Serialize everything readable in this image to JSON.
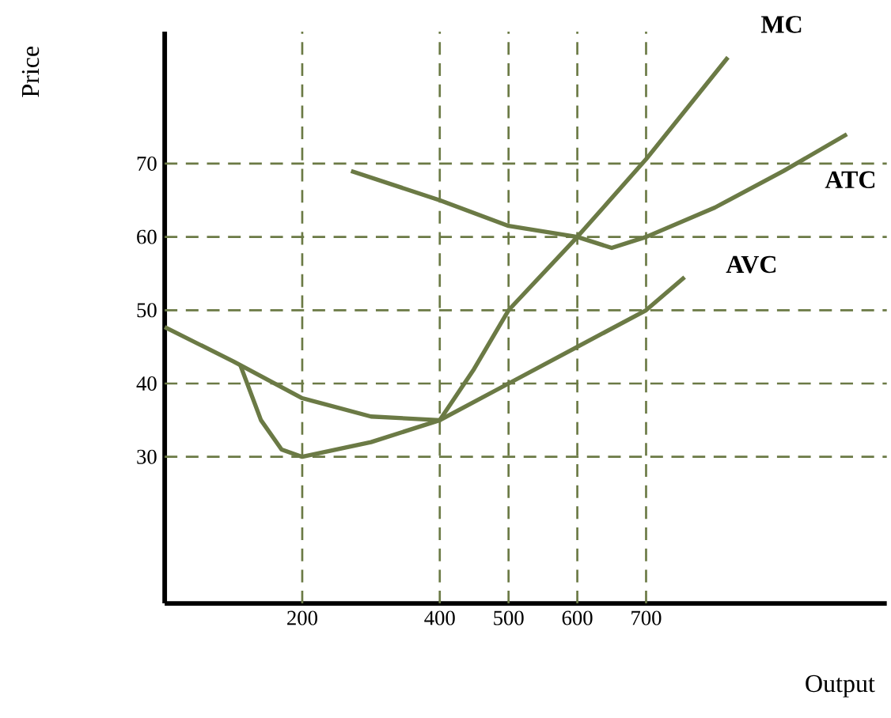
{
  "chart_data": {
    "type": "line",
    "xlabel": "Output",
    "ylabel": "Price",
    "xlim": [
      0,
      1050
    ],
    "ylim": [
      10,
      88
    ],
    "xticks": [
      200,
      400,
      500,
      600,
      700
    ],
    "yticks": [
      30,
      40,
      50,
      60,
      70
    ],
    "grid": false,
    "legend": false,
    "marker": "none",
    "line_style": "solid",
    "series": [
      {
        "name": "MC",
        "color": "#6b7a45",
        "x": [
          110,
          140,
          170,
          200,
          300,
          400,
          450,
          500,
          600,
          700,
          819
        ],
        "values": [
          42.5,
          35,
          31,
          30,
          32,
          35,
          42,
          50,
          60,
          70.6,
          84.5
        ]
      },
      {
        "name": "ATC",
        "color": "#6b7a45",
        "x": [
          271,
          400,
          500,
          600,
          650,
          700,
          800,
          900,
          992
        ],
        "values": [
          69,
          65,
          61.5,
          60,
          58.5,
          60,
          64,
          69,
          74
        ]
      },
      {
        "name": "AVC",
        "color": "#6b7a45",
        "x": [
          0,
          100,
          200,
          300,
          400,
          500,
          600,
          700,
          756
        ],
        "values": [
          47.7,
          43,
          38,
          35.5,
          35,
          40,
          45,
          50,
          54.5
        ]
      }
    ],
    "ref_lines": [
      {
        "axis": "y",
        "value": 30,
        "color": "#6b7a45",
        "line_style": "dashed"
      },
      {
        "axis": "y",
        "value": 40,
        "color": "#6b7a45",
        "line_style": "dashed"
      },
      {
        "axis": "y",
        "value": 50,
        "color": "#6b7a45",
        "line_style": "dashed"
      },
      {
        "axis": "y",
        "value": 60,
        "color": "#6b7a45",
        "line_style": "dashed"
      },
      {
        "axis": "y",
        "value": 70,
        "color": "#6b7a45",
        "line_style": "dashed"
      },
      {
        "axis": "x",
        "value": 200,
        "color": "#6b7a45",
        "line_style": "dashed"
      },
      {
        "axis": "x",
        "value": 400,
        "color": "#6b7a45",
        "line_style": "dashed"
      },
      {
        "axis": "x",
        "value": 500,
        "color": "#6b7a45",
        "line_style": "dashed"
      },
      {
        "axis": "x",
        "value": 600,
        "color": "#6b7a45",
        "line_style": "dashed"
      },
      {
        "axis": "x",
        "value": 700,
        "color": "#6b7a45",
        "line_style": "dashed"
      }
    ]
  }
}
